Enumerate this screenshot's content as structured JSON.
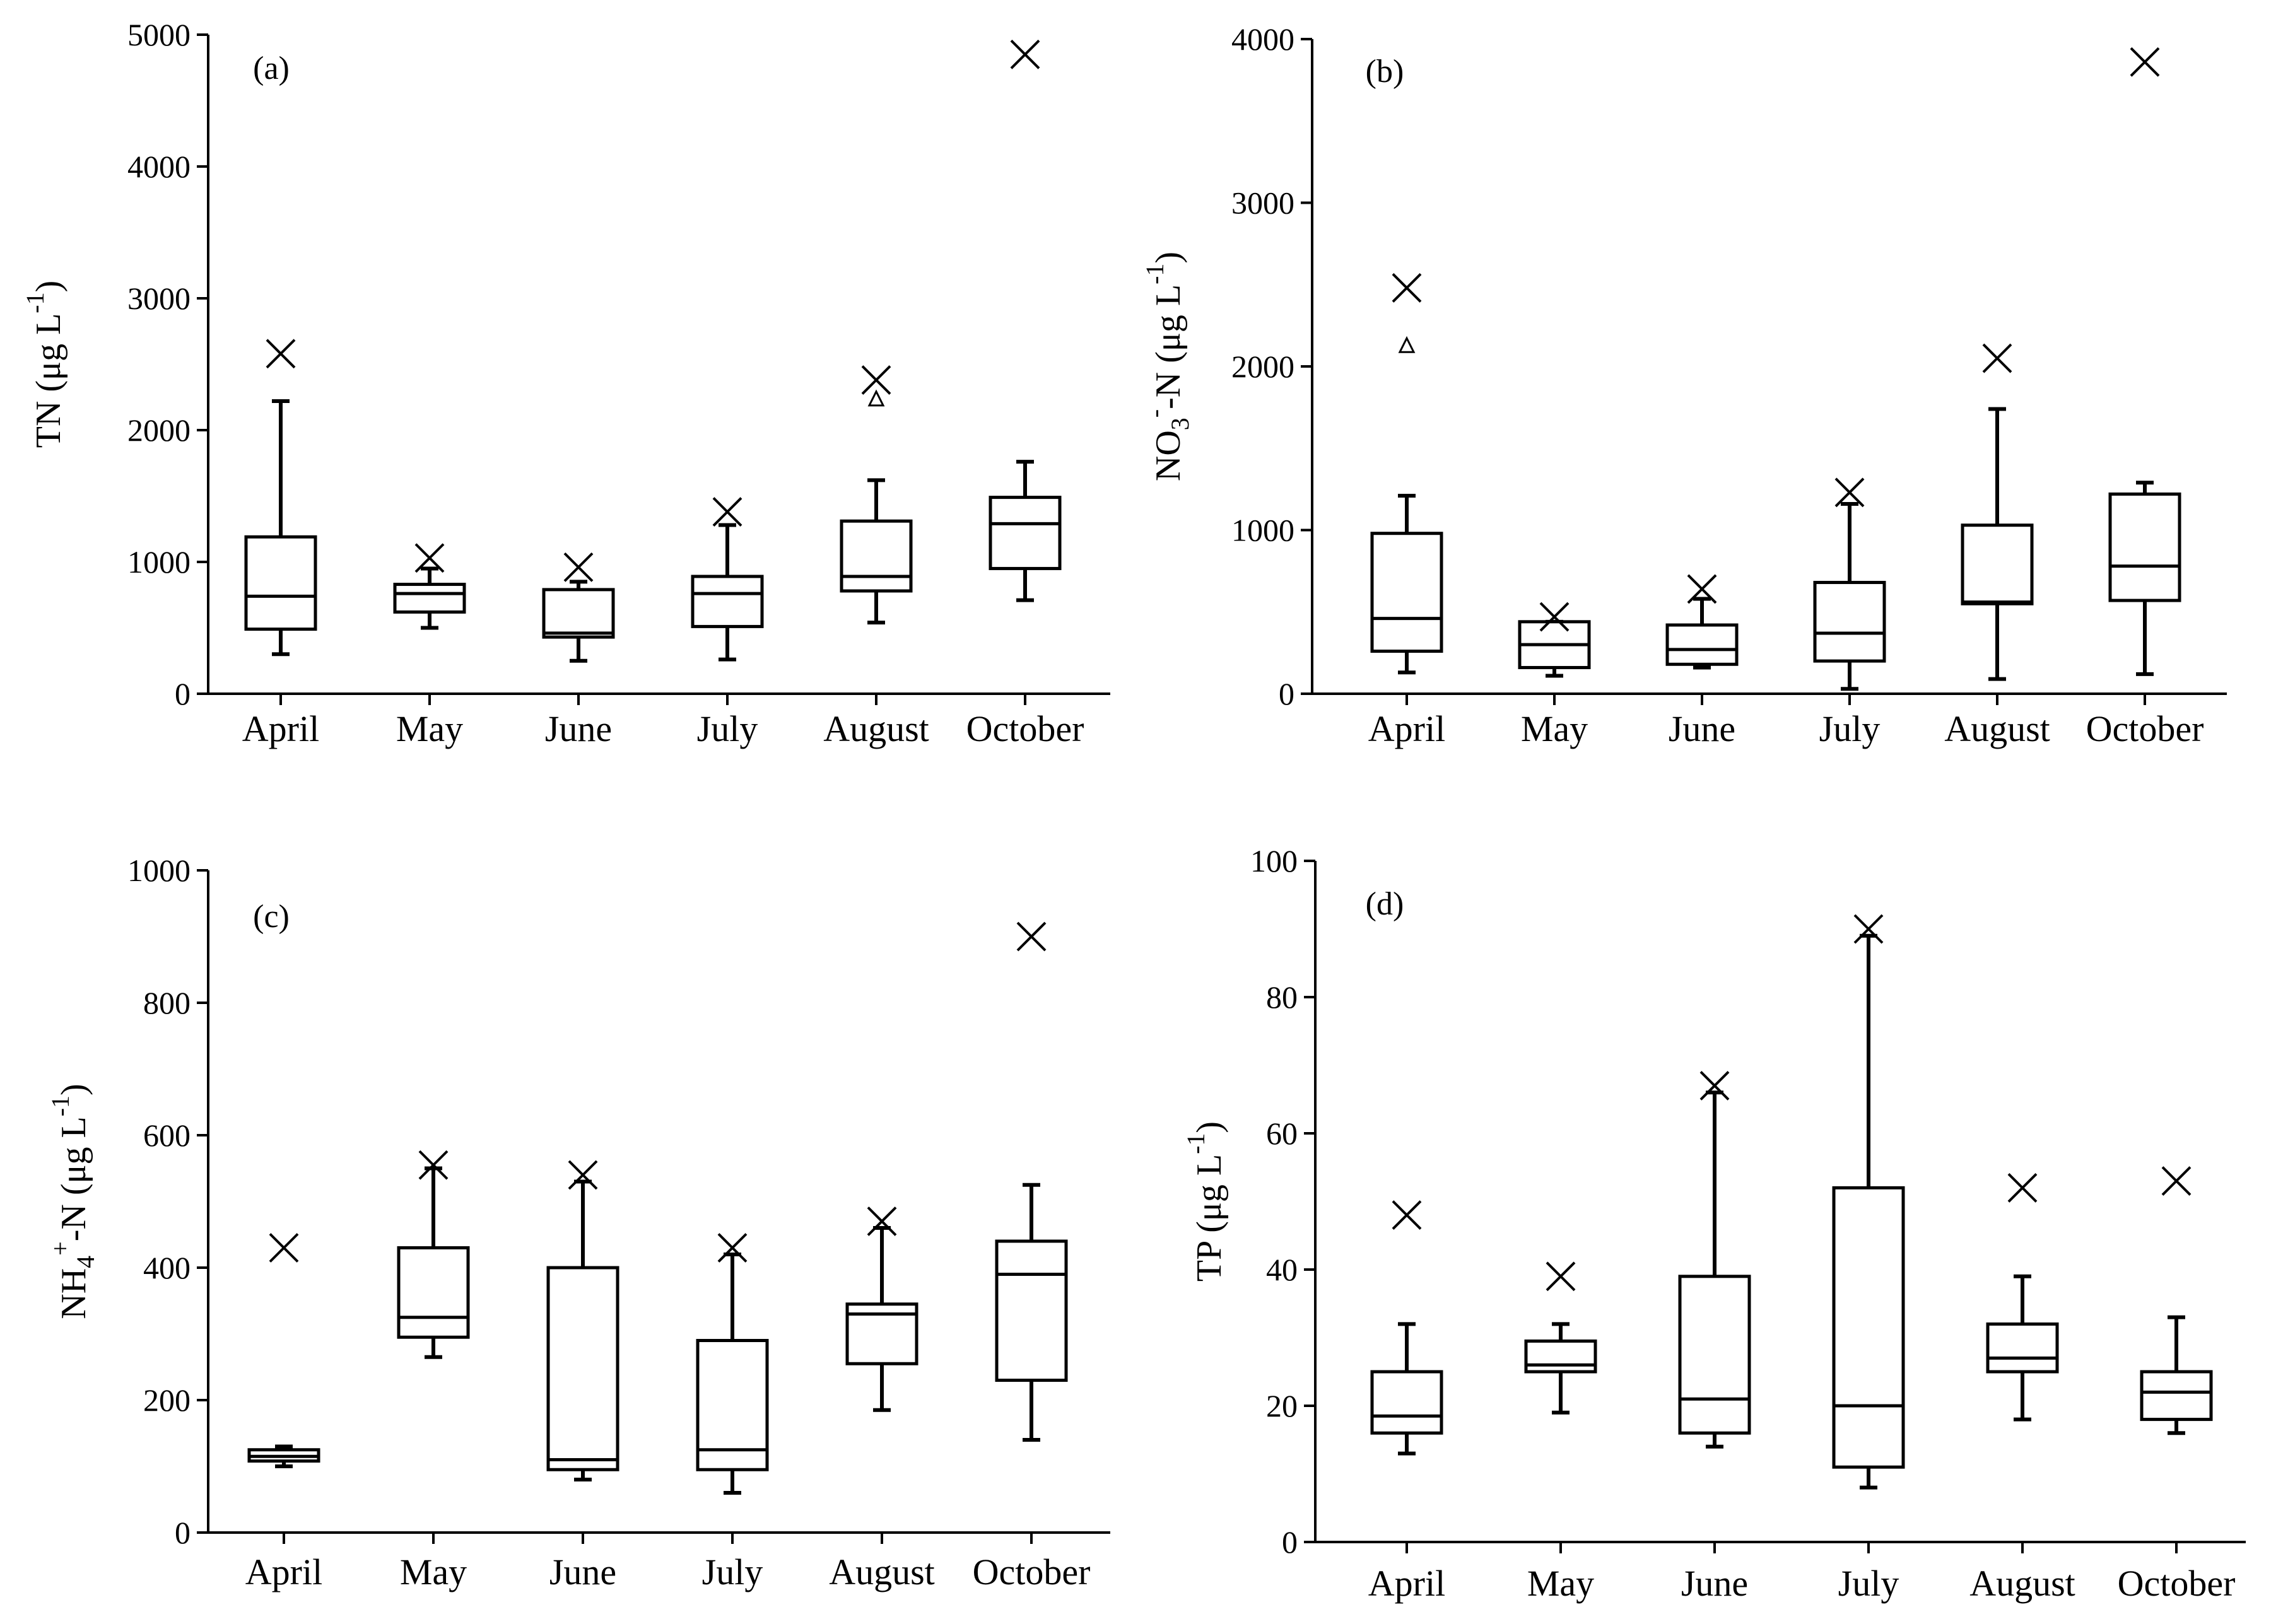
{
  "chart_data": [
    {
      "type": "box",
      "panel_label": "(a)",
      "ylabel_parts": {
        "main": "TN (μg L",
        "sup": "-1",
        "end": ")"
      },
      "categories": [
        "April",
        "May",
        "June",
        "July",
        "August",
        "October"
      ],
      "ylim": [
        0,
        5000
      ],
      "yticks": [
        "0",
        "1000",
        "2000",
        "3000",
        "4000",
        "5000"
      ],
      "ytick_values": [
        0,
        1000,
        2000,
        3000,
        4000,
        5000
      ],
      "boxes": [
        {
          "min": 300,
          "q1": 490,
          "median": 740,
          "q3": 1190,
          "max": 2220,
          "max_marker": 2580,
          "min_marker": null,
          "extra": null
        },
        {
          "min": 500,
          "q1": 620,
          "median": 760,
          "q3": 830,
          "max": 950,
          "max_marker": 1030,
          "min_marker": null,
          "extra": null
        },
        {
          "min": 250,
          "q1": 430,
          "median": 460,
          "q3": 790,
          "max": 850,
          "max_marker": 960,
          "min_marker": null,
          "extra": null
        },
        {
          "min": 260,
          "q1": 510,
          "median": 760,
          "q3": 890,
          "max": 1280,
          "max_marker": 1380,
          "min_marker": null,
          "extra": null
        },
        {
          "min": 540,
          "q1": 780,
          "median": 890,
          "q3": 1310,
          "max": 1620,
          "max_marker": 2380,
          "min_marker": null,
          "extra": 2240
        },
        {
          "min": 710,
          "q1": 950,
          "median": 1290,
          "q3": 1490,
          "max": 1760,
          "max_marker": 4850,
          "min_marker": null,
          "extra": null
        }
      ]
    },
    {
      "type": "box",
      "panel_label": "(b)",
      "ylabel_parts": {
        "main": "NO",
        "sub": "3",
        "sup": "-",
        "mid": "-N (μg L",
        "sup2": "-1",
        "end": ")"
      },
      "categories": [
        "April",
        "May",
        "June",
        "July",
        "August",
        "October"
      ],
      "ylim": [
        0,
        4000
      ],
      "yticks": [
        "0",
        "1000",
        "2000",
        "3000",
        "4000"
      ],
      "ytick_values": [
        0,
        1000,
        2000,
        3000,
        4000
      ],
      "boxes": [
        {
          "min": 130,
          "q1": 260,
          "median": 460,
          "q3": 980,
          "max": 1210,
          "max_marker": 2480,
          "min_marker": null,
          "extra": 2130
        },
        {
          "min": 110,
          "q1": 160,
          "median": 300,
          "q3": 440,
          "max": 440,
          "max_marker": 470,
          "min_marker": null,
          "extra": null
        },
        {
          "min": 160,
          "q1": 180,
          "median": 270,
          "q3": 420,
          "max": 580,
          "max_marker": 640,
          "min_marker": null,
          "extra": null
        },
        {
          "min": 30,
          "q1": 200,
          "median": 370,
          "q3": 680,
          "max": 1160,
          "max_marker": 1230,
          "min_marker": null,
          "extra": null
        },
        {
          "min": 90,
          "q1": 550,
          "median": 560,
          "q3": 1030,
          "max": 1740,
          "max_marker": 2050,
          "min_marker": null,
          "extra": null
        },
        {
          "min": 120,
          "q1": 570,
          "median": 780,
          "q3": 1220,
          "max": 1290,
          "max_marker": 3860,
          "min_marker": null,
          "extra": null
        }
      ]
    },
    {
      "type": "box",
      "panel_label": "(c)",
      "ylabel_parts": {
        "main": "NH",
        "sub": "4",
        "sup": "+",
        "mid": "-N (μg L",
        "sup2": "-1",
        "end": ")"
      },
      "categories": [
        "April",
        "May",
        "June",
        "July",
        "August",
        "October"
      ],
      "ylim": [
        0,
        1000
      ],
      "yticks": [
        "0",
        "200",
        "400",
        "600",
        "800",
        "1000"
      ],
      "ytick_values": [
        0,
        200,
        400,
        600,
        800,
        1000
      ],
      "boxes": [
        {
          "min": 100,
          "q1": 108,
          "median": 115,
          "q3": 125,
          "max": 130,
          "max_marker": 430,
          "min_marker": null,
          "extra": null
        },
        {
          "min": 265,
          "q1": 295,
          "median": 325,
          "q3": 430,
          "max": 550,
          "max_marker": 555,
          "min_marker": null,
          "extra": null
        },
        {
          "min": 80,
          "q1": 95,
          "median": 110,
          "q3": 400,
          "max": 530,
          "max_marker": 540,
          "min_marker": null,
          "extra": null
        },
        {
          "min": 60,
          "q1": 95,
          "median": 125,
          "q3": 290,
          "max": 420,
          "max_marker": 430,
          "min_marker": null,
          "extra": null
        },
        {
          "min": 185,
          "q1": 255,
          "median": 330,
          "q3": 345,
          "max": 460,
          "max_marker": 470,
          "min_marker": null,
          "extra": null
        },
        {
          "min": 140,
          "q1": 230,
          "median": 390,
          "q3": 440,
          "max": 525,
          "max_marker": 900,
          "min_marker": null,
          "extra": null
        }
      ]
    },
    {
      "type": "box",
      "panel_label": "(d)",
      "ylabel_parts": {
        "main": "TP (μg L",
        "sup": "-1",
        "end": ")"
      },
      "categories": [
        "April",
        "May",
        "June",
        "July",
        "August",
        "October"
      ],
      "ylim": [
        0,
        100
      ],
      "yticks": [
        "0",
        "20",
        "40",
        "60",
        "80",
        "100"
      ],
      "ytick_values": [
        0,
        20,
        40,
        60,
        80,
        100
      ],
      "boxes": [
        {
          "min": 13,
          "q1": 16,
          "median": 18.5,
          "q3": 25,
          "max": 32,
          "max_marker": 48,
          "min_marker": null,
          "extra": null
        },
        {
          "min": 19,
          "q1": 25,
          "median": 26,
          "q3": 29.5,
          "max": 32,
          "max_marker": 39,
          "min_marker": null,
          "extra": null
        },
        {
          "min": 14,
          "q1": 16,
          "median": 21,
          "q3": 39,
          "max": 66,
          "max_marker": 67,
          "min_marker": null,
          "extra": null
        },
        {
          "min": 8,
          "q1": 11,
          "median": 20,
          "q3": 52,
          "max": 89,
          "max_marker": 90,
          "min_marker": null,
          "extra": null
        },
        {
          "min": 18,
          "q1": 25,
          "median": 27,
          "q3": 32,
          "max": 39,
          "max_marker": 52,
          "min_marker": null,
          "extra": null
        },
        {
          "min": 16,
          "q1": 18,
          "median": 22,
          "q3": 25,
          "max": 33,
          "max_marker": 53,
          "min_marker": null,
          "extra": null
        }
      ]
    }
  ]
}
